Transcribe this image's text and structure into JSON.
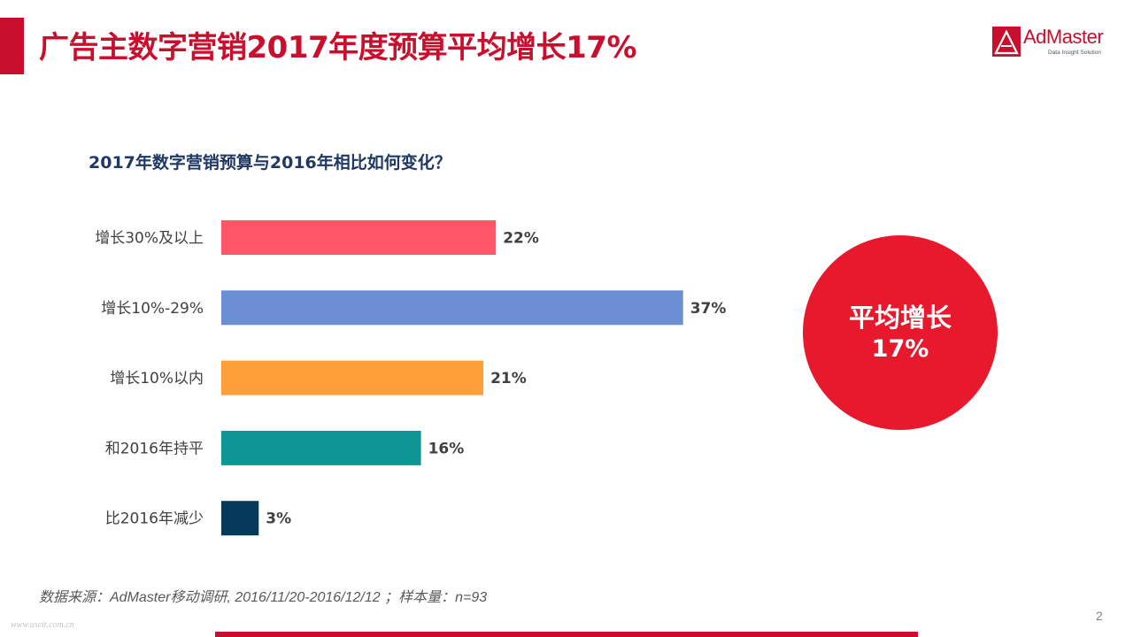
{
  "header": {
    "title": "广告主数字营销2017年度预算平均增长17%",
    "logo_text": "AdMaster",
    "logo_tagline": "Data Insight Solution",
    "logo_mark": "admaster-logo"
  },
  "chart_data": {
    "type": "bar",
    "orientation": "horizontal",
    "title": "2017年数字营销预算与2016年相比如何变化？",
    "categories": [
      "增长30%及以上",
      "增长10%-29%",
      "增长10%以内",
      "和2016年持平",
      "比2016年减少"
    ],
    "values": [
      22,
      37,
      21,
      16,
      3
    ],
    "value_labels": [
      "22%",
      "37%",
      "21%",
      "16%",
      "3%"
    ],
    "colors": [
      "#ff5566",
      "#6b8fd2",
      "#ff9f3a",
      "#0e9696",
      "#063a5a"
    ],
    "xlim": [
      0,
      40
    ],
    "grid": false,
    "xlabel": "",
    "ylabel": ""
  },
  "callout": {
    "line1": "平均增长",
    "line2": "17%",
    "color": "#e8192c"
  },
  "footer": {
    "source": "数据来源：AdMaster移动调研, 2016/11/20-2016/12/12 ；样本量：n=93",
    "watermark": "www.useit.com.cn",
    "page_number": "2"
  },
  "colors": {
    "accent": "#c8102e",
    "question": "#1f3864"
  }
}
